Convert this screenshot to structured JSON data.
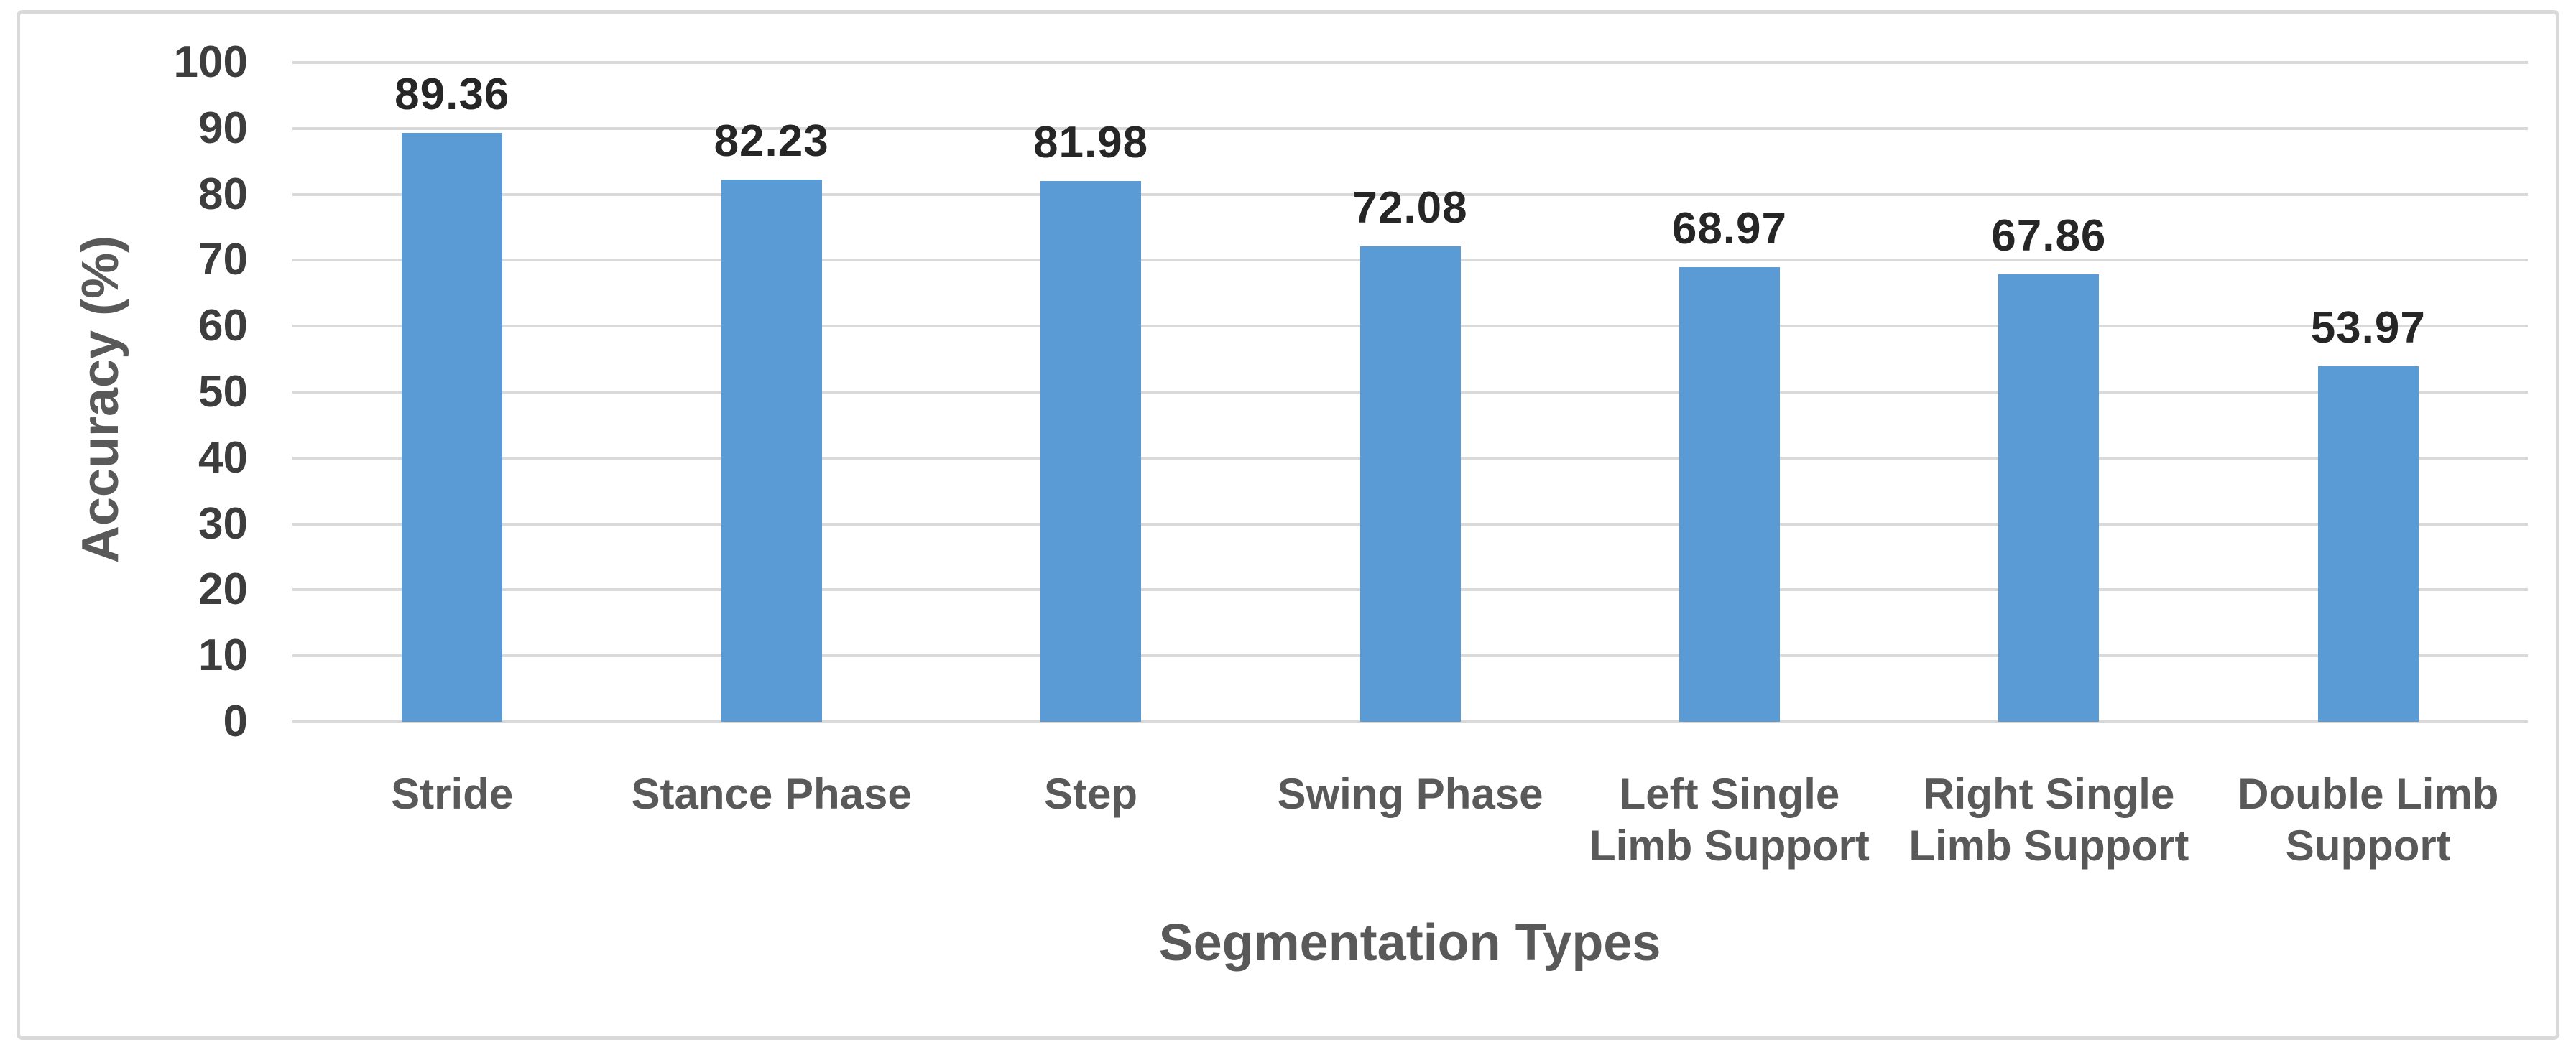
{
  "chart_data": {
    "type": "bar",
    "title": "",
    "xlabel": "Segmentation Types",
    "ylabel": "Accuracy (%)",
    "categories": [
      "Stride",
      "Stance Phase",
      "Step",
      "Swing Phase",
      "Left Single Limb Support",
      "Right Single Limb Support",
      "Double Limb Support"
    ],
    "values": [
      89.36,
      82.23,
      81.98,
      72.08,
      68.97,
      67.86,
      53.97
    ],
    "data_labels": [
      "89.36",
      "82.23",
      "81.98",
      "72.08",
      "68.97",
      "67.86",
      "53.97"
    ],
    "ylim": [
      0,
      100
    ],
    "yticks": [
      0,
      10,
      20,
      30,
      40,
      50,
      60,
      70,
      80,
      90,
      100
    ],
    "grid": true,
    "legend": "none",
    "colors": {
      "bar": "#5B9BD5",
      "gridline": "#D9D9D9",
      "frame_border": "#D9D9D9",
      "tick_label": "#3D3D3D",
      "data_label": "#262626",
      "category_label": "#595959",
      "axis_title": "#595959",
      "background": "#FFFFFF"
    }
  }
}
